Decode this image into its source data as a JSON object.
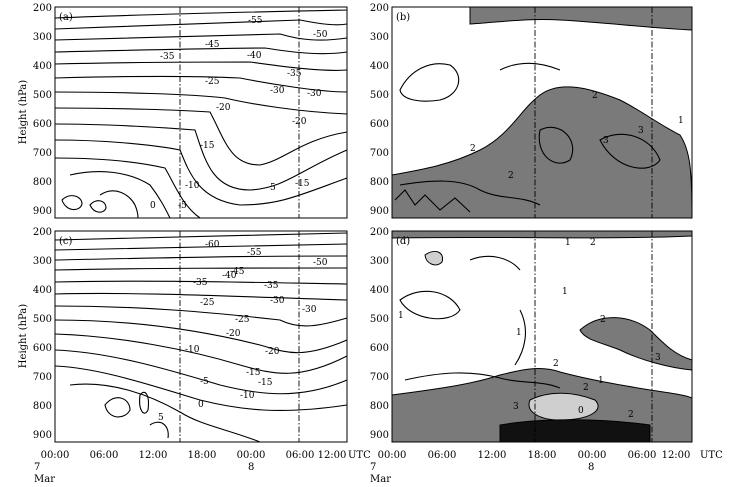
{
  "chart_data": [
    {
      "type": "contour",
      "panel_label": "(a)",
      "ylabel": "Height (hPa)",
      "yticks": [
        "200",
        "300",
        "400",
        "500",
        "600",
        "700",
        "800",
        "900"
      ],
      "contour_labels": [
        "-55",
        "-50",
        "-45",
        "-40",
        "-35",
        "-35",
        "-30",
        "-25",
        "-30",
        "-20",
        "-20",
        "-15",
        "-15",
        "-10",
        "-5",
        "0",
        "5"
      ]
    },
    {
      "type": "contour",
      "panel_label": "(b)",
      "yticks": [
        "200",
        "300",
        "400",
        "500",
        "600",
        "700",
        "800",
        "900"
      ],
      "contour_labels": [
        "2",
        "2",
        "3",
        "3",
        "2",
        "1"
      ]
    },
    {
      "type": "contour",
      "panel_label": "(c)",
      "ylabel": "Height (hPa)",
      "yticks": [
        "200",
        "300",
        "400",
        "500",
        "600",
        "700",
        "800",
        "900"
      ],
      "contour_labels": [
        "-60",
        "-55",
        "-50",
        "-45",
        "-40",
        "-35",
        "-35",
        "-30",
        "-25",
        "-30",
        "-25",
        "-20",
        "-20",
        "-15",
        "-15",
        "-10",
        "-10",
        "-5",
        "0",
        "5"
      ]
    },
    {
      "type": "contour",
      "panel_label": "(d)",
      "yticks": [
        "200",
        "300",
        "400",
        "500",
        "600",
        "700",
        "800",
        "900"
      ],
      "contour_labels": [
        "1",
        "2",
        "1",
        "1",
        "2",
        "2",
        "3",
        "1",
        "2",
        "1",
        "2",
        "0",
        "3"
      ]
    }
  ],
  "x_axis": {
    "ticks": [
      "00:00",
      "06:00",
      "12:00",
      "18:00",
      "00:00",
      "06:00",
      "12:00"
    ],
    "unit": "UTC",
    "date_labels": [
      {
        "text": "7",
        "under_tick": 0
      },
      {
        "text": "Mar",
        "under_tick": 0
      },
      {
        "text": "8",
        "under_tick": 4
      }
    ]
  }
}
